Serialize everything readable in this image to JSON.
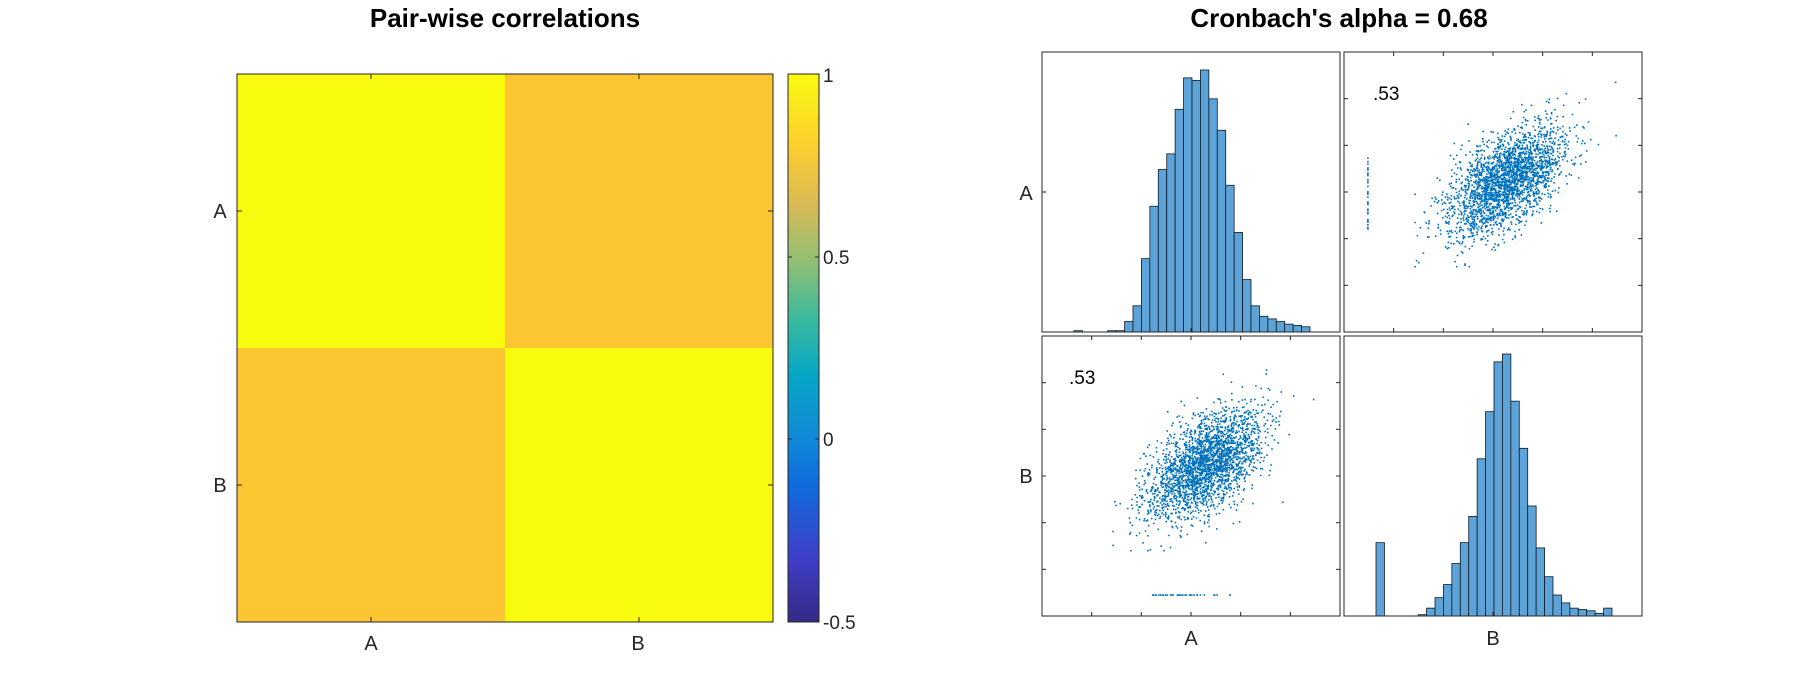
{
  "colors": {
    "high": "#f9fb0e",
    "mid": "#fbc632",
    "marker": "#0072bd",
    "bar_fill": "#5ea3d8",
    "bar_edge": "#0b1a26",
    "axis": "#262626"
  },
  "chart_data": [
    {
      "type": "heatmap",
      "title": "Pair-wise correlations",
      "x_categories": [
        "A",
        "B"
      ],
      "y_categories": [
        "A",
        "B"
      ],
      "values": [
        [
          1.0,
          0.53
        ],
        [
          0.53,
          1.0
        ]
      ],
      "colorbar": {
        "range": [
          -0.5,
          1
        ],
        "ticks": [
          1,
          0.5,
          0,
          -0.5
        ],
        "tick_labels": [
          "1",
          "0.5",
          "0",
          "-0.5"
        ]
      },
      "colormap": "parula"
    },
    {
      "type": "scatter",
      "title": "Cronbach's alpha = 0.68",
      "variables": [
        "A",
        "B"
      ],
      "correlation_labels": {
        "A_B": ".53",
        "B_A": ".53"
      },
      "histograms": {
        "A": [
          0.005,
          0,
          0,
          0,
          0.005,
          0.005,
          0.04,
          0.1,
          0.28,
          0.48,
          0.62,
          0.68,
          0.85,
          0.97,
          0.96,
          1.0,
          0.89,
          0.77,
          0.56,
          0.38,
          0.2,
          0.1,
          0.06,
          0.05,
          0.04,
          0.03,
          0.025,
          0.02
        ],
        "B": [
          0.28,
          0,
          0,
          0,
          0,
          0.005,
          0.03,
          0.07,
          0.12,
          0.2,
          0.28,
          0.38,
          0.6,
          0.78,
          0.97,
          1.0,
          0.82,
          0.64,
          0.42,
          0.26,
          0.15,
          0.08,
          0.05,
          0.03,
          0.025,
          0.02,
          0.01,
          0.03
        ]
      },
      "scatter": {
        "n_points": 2500,
        "correlation": 0.53
      }
    }
  ]
}
